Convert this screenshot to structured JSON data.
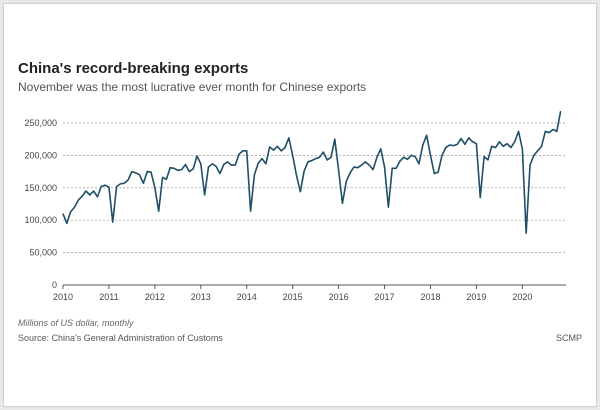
{
  "header": {
    "title": "China's record-breaking exports",
    "subtitle": "November was the most lucrative ever month for Chinese exports"
  },
  "footer": {
    "units": "Millions of US dollar, monthly",
    "source": "Source: China's General Administration of Customs",
    "credit": "SCMP"
  },
  "colors": {
    "line": "#1e4f66",
    "grid": "#999999",
    "axis": "#555555"
  },
  "chart_data": {
    "type": "line",
    "title": "China's record-breaking exports",
    "subtitle": "November was the most lucrative ever month for Chinese exports",
    "xlabel": "",
    "ylabel": "Millions of US dollar, monthly",
    "y_tick_labels": [
      "0",
      "50,000",
      "100,000",
      "150,000",
      "200,000",
      "250,000"
    ],
    "y_tick_values": [
      0,
      50000,
      100000,
      150000,
      200000,
      250000
    ],
    "x_tick_labels": [
      "2010",
      "2011",
      "2012",
      "2013",
      "2014",
      "2015",
      "2016",
      "2017",
      "2018",
      "2019",
      "2020"
    ],
    "x_tick_values": [
      2010,
      2011,
      2012,
      2013,
      2014,
      2015,
      2016,
      2017,
      2018,
      2019,
      2020
    ],
    "xlim": [
      2010,
      2020.95
    ],
    "ylim": [
      0,
      270000
    ],
    "grid": "horizontal dashed",
    "legend": "none",
    "series": [
      {
        "name": "",
        "x": [
          2010,
          2010.083,
          2010.167,
          2010.25,
          2010.333,
          2010.417,
          2010.5,
          2010.583,
          2010.667,
          2010.75,
          2010.833,
          2010.917,
          2011,
          2011.083,
          2011.167,
          2011.25,
          2011.333,
          2011.417,
          2011.5,
          2011.583,
          2011.667,
          2011.75,
          2011.833,
          2011.917,
          2012,
          2012.083,
          2012.167,
          2012.25,
          2012.333,
          2012.417,
          2012.5,
          2012.583,
          2012.667,
          2012.75,
          2012.833,
          2012.917,
          2013,
          2013.083,
          2013.167,
          2013.25,
          2013.333,
          2013.417,
          2013.5,
          2013.583,
          2013.667,
          2013.75,
          2013.833,
          2013.917,
          2014,
          2014.083,
          2014.167,
          2014.25,
          2014.333,
          2014.417,
          2014.5,
          2014.583,
          2014.667,
          2014.75,
          2014.833,
          2014.917,
          2015,
          2015.083,
          2015.167,
          2015.25,
          2015.333,
          2015.417,
          2015.5,
          2015.583,
          2015.667,
          2015.75,
          2015.833,
          2015.917,
          2016,
          2016.083,
          2016.167,
          2016.25,
          2016.333,
          2016.417,
          2016.5,
          2016.583,
          2016.667,
          2016.75,
          2016.833,
          2016.917,
          2017,
          2017.083,
          2017.167,
          2017.25,
          2017.333,
          2017.417,
          2017.5,
          2017.583,
          2017.667,
          2017.75,
          2017.833,
          2017.917,
          2018,
          2018.083,
          2018.167,
          2018.25,
          2018.333,
          2018.417,
          2018.5,
          2018.583,
          2018.667,
          2018.75,
          2018.833,
          2018.917,
          2019,
          2019.083,
          2019.167,
          2019.25,
          2019.333,
          2019.417,
          2019.5,
          2019.583,
          2019.667,
          2019.75,
          2019.833,
          2019.917,
          2020,
          2020.083,
          2020.167,
          2020.25,
          2020.333,
          2020.417,
          2020.5,
          2020.583,
          2020.667,
          2020.75,
          2020.833
        ],
        "y": [
          110000,
          95000,
          113000,
          120000,
          131000,
          137000,
          145000,
          139000,
          145000,
          136000,
          152000,
          154000,
          151000,
          97000,
          152000,
          156000,
          157000,
          162000,
          175000,
          173000,
          170000,
          157000,
          175000,
          174000,
          150000,
          114000,
          166000,
          163000,
          181000,
          180000,
          177000,
          178000,
          186000,
          175000,
          179000,
          199000,
          187000,
          139000,
          182000,
          187000,
          183000,
          172000,
          186000,
          190000,
          185000,
          185000,
          202000,
          207000,
          207000,
          114000,
          170000,
          188000,
          195000,
          187000,
          213000,
          208000,
          214000,
          207000,
          212000,
          227000,
          200000,
          169000,
          144000,
          176000,
          190000,
          192000,
          195000,
          197000,
          205000,
          193000,
          197000,
          225000,
          177000,
          126000,
          160000,
          173000,
          182000,
          181000,
          185000,
          190000,
          185000,
          178000,
          197000,
          210000,
          182000,
          120000,
          180000,
          180000,
          191000,
          197000,
          194000,
          200000,
          198000,
          187000,
          216000,
          231000,
          200000,
          172000,
          174000,
          200000,
          212000,
          216000,
          215000,
          217000,
          226000,
          217000,
          227000,
          221000,
          218000,
          135000,
          198000,
          193000,
          214000,
          212000,
          221000,
          214000,
          218000,
          212000,
          221000,
          237000,
          210000,
          80000,
          185000,
          200000,
          207000,
          214000,
          237000,
          235000,
          240000,
          237000,
          268000
        ]
      }
    ]
  }
}
